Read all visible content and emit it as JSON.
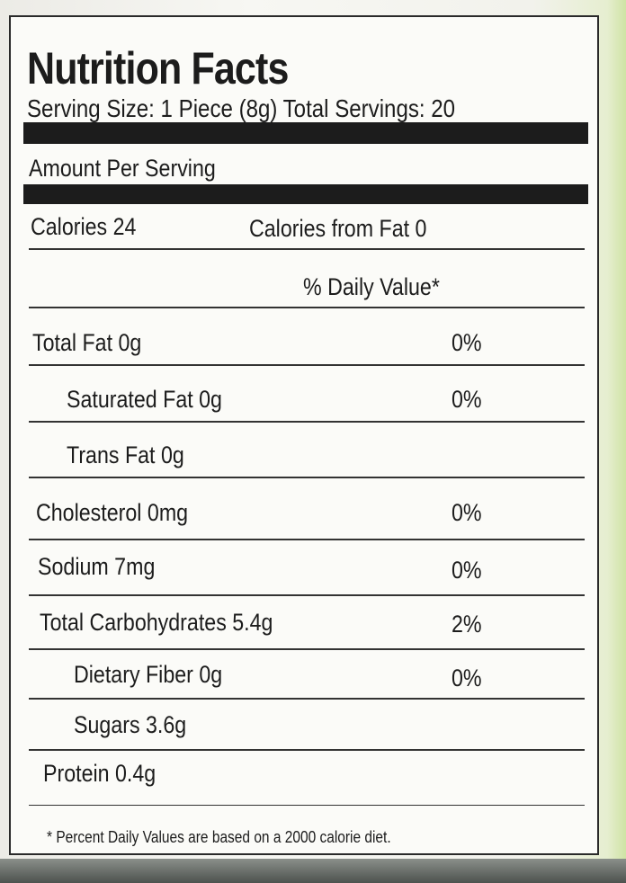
{
  "label": {
    "title": "Nutrition Facts",
    "serving": "Serving Size: 1 Piece (8g) Total Servings: 20",
    "amount_per_serving": "Amount Per Serving",
    "calories": "Calories 24",
    "calories_from_fat": "Calories from Fat 0",
    "dv_header": "% Daily Value*",
    "rows": [
      {
        "name": "Total Fat 0g",
        "dv": "0%"
      },
      {
        "name": "Saturated Fat 0g",
        "dv": "0%"
      },
      {
        "name": "Trans Fat 0g",
        "dv": ""
      },
      {
        "name": "Cholesterol 0mg",
        "dv": "0%"
      },
      {
        "name": "Sodium 7mg",
        "dv": "0%"
      },
      {
        "name": "Total Carbohydrates 5.4g",
        "dv": "2%"
      },
      {
        "name": "Dietary Fiber 0g",
        "dv": "0%"
      },
      {
        "name": "Sugars 3.6g",
        "dv": ""
      },
      {
        "name": "Protein 0.4g",
        "dv": ""
      }
    ],
    "footnote": "* Percent Daily Values are based on a 2000 calorie diet."
  }
}
